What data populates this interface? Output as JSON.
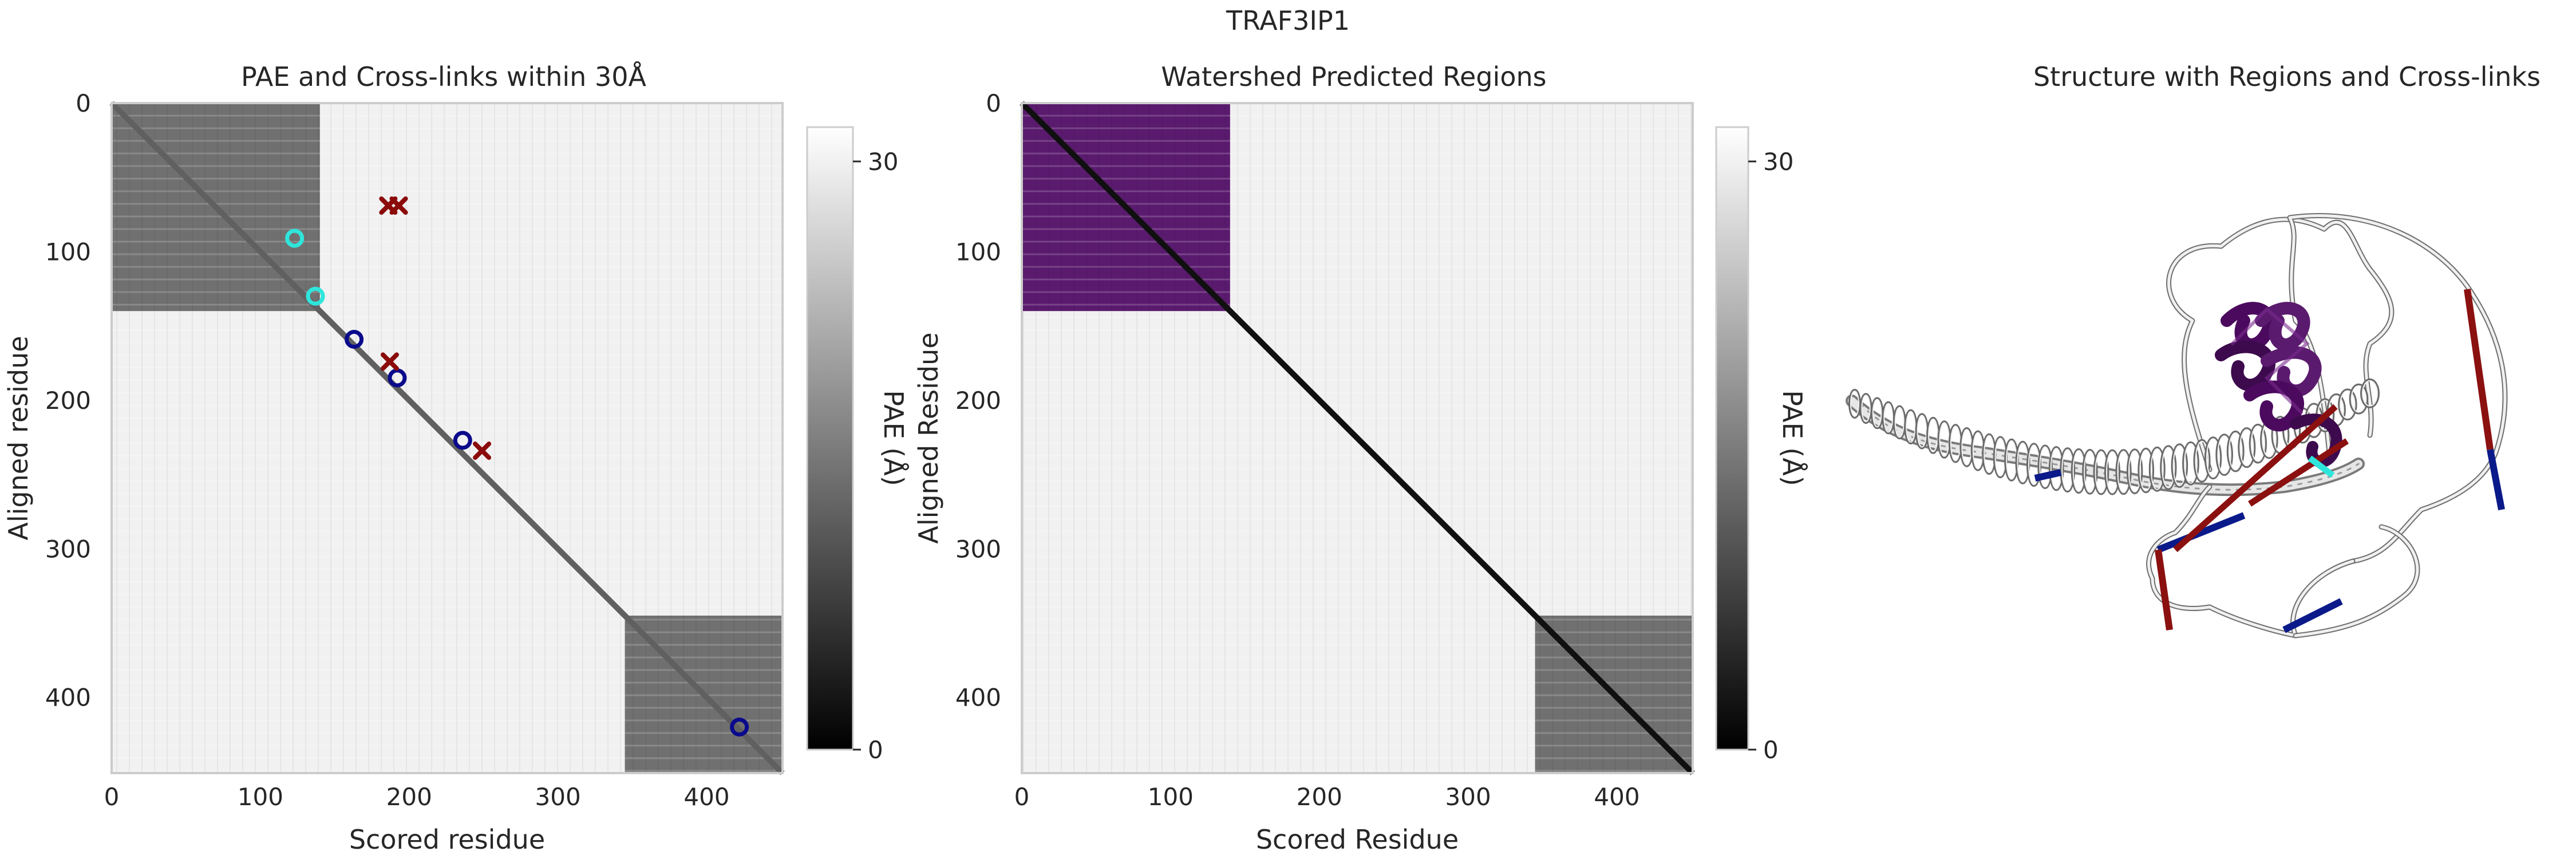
{
  "suptitle": "TRAF3IP1",
  "chart_data": [
    {
      "type": "heatmap",
      "title": "PAE and Cross-links within 30Å",
      "xlabel": "Scored residue",
      "ylabel": "Aligned residue",
      "xlim": [
        0,
        451
      ],
      "ylim": [
        451,
        0
      ],
      "xticks": [
        "0",
        "100",
        "200",
        "300",
        "400"
      ],
      "yticks": [
        "0",
        "100",
        "200",
        "300",
        "400"
      ],
      "colorbar": {
        "label": "PAE (Å)",
        "ticks": [
          "0",
          "30"
        ],
        "range": [
          0,
          31.75
        ],
        "colormap": "gray"
      },
      "blocks": [
        {
          "residues": [
            0,
            140
          ],
          "pae": 14
        },
        {
          "residues": [
            345,
            451
          ],
          "pae": 14
        }
      ],
      "diagonal_band_pae": 12,
      "background_pae": 30,
      "markers": [
        {
          "x": 123,
          "y": 91,
          "marker": "circle",
          "color": "#2ee6dc"
        },
        {
          "x": 137,
          "y": 130,
          "marker": "circle",
          "color": "#2ee6dc"
        },
        {
          "x": 163,
          "y": 159,
          "marker": "circle",
          "color": "#0a0a8c"
        },
        {
          "x": 192,
          "y": 185,
          "marker": "circle",
          "color": "#0a0a8c"
        },
        {
          "x": 236,
          "y": 227,
          "marker": "circle",
          "color": "#0a0a8c"
        },
        {
          "x": 422,
          "y": 420,
          "marker": "circle",
          "color": "#0a0a8c"
        },
        {
          "x": 186,
          "y": 69,
          "marker": "x",
          "color": "#8b0a0a"
        },
        {
          "x": 193,
          "y": 69,
          "marker": "x",
          "color": "#8b0a0a"
        },
        {
          "x": 187,
          "y": 174,
          "marker": "x",
          "color": "#8b0a0a"
        },
        {
          "x": 249,
          "y": 234,
          "marker": "x",
          "color": "#8b0a0a"
        }
      ]
    },
    {
      "type": "heatmap",
      "title": "Watershed Predicted Regions",
      "xlabel": "Scored Residue",
      "ylabel": "Aligned Residue",
      "xlim": [
        0,
        451
      ],
      "ylim": [
        451,
        0
      ],
      "xticks": [
        "0",
        "100",
        "200",
        "300",
        "400"
      ],
      "yticks": [
        "0",
        "100",
        "200",
        "300",
        "400"
      ],
      "colorbar": {
        "label": "PAE (Å)",
        "ticks": [
          "0",
          "30"
        ],
        "range": [
          0,
          31.75
        ],
        "colormap": "gray"
      },
      "regions": [
        {
          "residues": [
            0,
            140
          ],
          "color": "#5a1a6e"
        }
      ],
      "blocks": [
        {
          "residues": [
            345,
            451
          ],
          "pae": 14
        }
      ],
      "diagonal_band_pae": 2,
      "background_pae": 30
    }
  ],
  "structure_panel": {
    "title": "Structure with Regions and Cross-links",
    "colors": {
      "region": "#4b0a5e",
      "crosslink_long": "#8b1010",
      "crosslink_short": "#0a1a8a",
      "highlight": "#2ee6dc",
      "backbone": "#cfcfcf"
    }
  }
}
